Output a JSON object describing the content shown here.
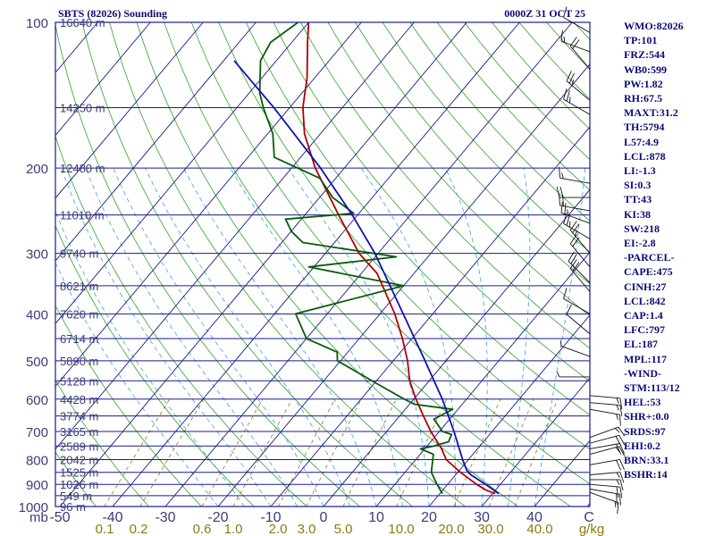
{
  "header": {
    "station": "SBTS (82026) Sounding",
    "time": "0000Z 31 OCT 25"
  },
  "stats": [
    "WMO:82026",
    "TP:101",
    "FRZ:544",
    "WB0:599",
    "PW:1.82",
    "RH:67.5",
    "MAXT:31.2",
    "TH:5794",
    "L57:4.9",
    "LCL:878",
    "LI:-1.3",
    "SI:0.3",
    "TT:43",
    "KI:38",
    "SW:218",
    "EI:-2.8",
    "-PARCEL-",
    "CAPE:475",
    "CINH:27",
    "LCL:842",
    "CAP:1.4",
    "LFC:797",
    "EL:187",
    "MPL:117",
    "-WIND-",
    "STM:113/12",
    "HEL:53",
    "SHR+:0.0",
    "SRDS:97",
    "EHI:0.2",
    "BRN:33.1",
    "BSHR:14"
  ],
  "colors": {
    "isobar": "#1a1a8c",
    "isotherm": "#1a1a8c",
    "dry_adiabat": "#2aa52a",
    "moist_adiabat": "#3aa0d8",
    "mixing_ratio": "#8a7a10",
    "temperature": "#b00000",
    "dewpoint": "#0a5a0a",
    "parcel": "#1010b0"
  },
  "chart_data": {
    "type": "line",
    "title": "SBTS (82026) Sounding",
    "subtitle": "0000Z 31 OCT 25",
    "xlabel": "",
    "ylabel": "mb",
    "x_unit": "C",
    "xlim": [
      -50,
      50
    ],
    "ylim": [
      1000,
      100
    ],
    "y_scale": "log",
    "x_ticks": [
      -50,
      -40,
      -30,
      -20,
      -10,
      0,
      10,
      20,
      30,
      40
    ],
    "x_tick_labels": [
      "-50",
      "-40",
      "-30",
      "-20",
      "-10",
      "0",
      "10",
      "20",
      "30",
      "40"
    ],
    "y_ticks": [
      1000,
      900,
      800,
      700,
      600,
      500,
      400,
      300,
      200,
      100
    ],
    "mixing_ratio_unit": "g/kg",
    "mixing_ratio_labels": [
      "0.1",
      "0.2",
      "0.6",
      "1.0",
      "2.0",
      "3.0",
      "5.0",
      "10.0",
      "20.0",
      "30.0",
      "40.0"
    ],
    "heights": [
      {
        "p": 100,
        "label": "16640 m"
      },
      {
        "p": 150,
        "label": "14250 m"
      },
      {
        "p": 200,
        "label": "12480 m"
      },
      {
        "p": 250,
        "label": "11010 m"
      },
      {
        "p": 300,
        "label": "9740 m"
      },
      {
        "p": 350,
        "label": "8621 m"
      },
      {
        "p": 400,
        "label": "7620 m"
      },
      {
        "p": 450,
        "label": "6714 m"
      },
      {
        "p": 500,
        "label": "5890 m"
      },
      {
        "p": 550,
        "label": "5128 m"
      },
      {
        "p": 600,
        "label": "4428 m"
      },
      {
        "p": 650,
        "label": "3774 m"
      },
      {
        "p": 700,
        "label": "3165 m"
      },
      {
        "p": 750,
        "label": "2589 m"
      },
      {
        "p": 800,
        "label": "2042 m"
      },
      {
        "p": 850,
        "label": "1525 m"
      },
      {
        "p": 900,
        "label": "1026 m"
      },
      {
        "p": 950,
        "label": "549 m"
      },
      {
        "p": 1000,
        "label": "96 m"
      }
    ],
    "series": [
      {
        "name": "",
        "role": "temperature",
        "points": [
          [
            941,
            30.5
          ],
          [
            925,
            28.2
          ],
          [
            900,
            25.5
          ],
          [
            850,
            20.5
          ],
          [
            800,
            15.8
          ],
          [
            760,
            13.2
          ],
          [
            700,
            8.4
          ],
          [
            650,
            4.5
          ],
          [
            600,
            0.4
          ],
          [
            550,
            -3.7
          ],
          [
            500,
            -7.3
          ],
          [
            450,
            -11.8
          ],
          [
            400,
            -17.2
          ],
          [
            350,
            -24.0
          ],
          [
            330,
            -27.0
          ],
          [
            300,
            -33.6
          ],
          [
            250,
            -43.6
          ],
          [
            200,
            -55.5
          ],
          [
            170,
            -63.0
          ],
          [
            150,
            -67.5
          ],
          [
            130,
            -71.5
          ],
          [
            110,
            -77.0
          ],
          [
            100,
            -80.0
          ]
        ]
      },
      {
        "name": "",
        "role": "dewpoint",
        "points": [
          [
            941,
            20.5
          ],
          [
            900,
            18.0
          ],
          [
            850,
            15.0
          ],
          [
            780,
            12.5
          ],
          [
            760,
            9.2
          ],
          [
            750,
            11.3
          ],
          [
            735,
            13.4
          ],
          [
            710,
            12.8
          ],
          [
            700,
            10.6
          ],
          [
            660,
            7.0
          ],
          [
            630,
            9.0
          ],
          [
            615,
            1.0
          ],
          [
            600,
            -1.8
          ],
          [
            560,
            -9.0
          ],
          [
            500,
            -20.6
          ],
          [
            480,
            -22.0
          ],
          [
            450,
            -30.0
          ],
          [
            400,
            -36.0
          ],
          [
            350,
            -20.0
          ],
          [
            320,
            -41.0
          ],
          [
            305,
            -26.0
          ],
          [
            285,
            -46.0
          ],
          [
            270,
            -50.0
          ],
          [
            255,
            -53.0
          ],
          [
            248,
            -41.0
          ],
          [
            230,
            -47.5
          ],
          [
            210,
            -53.0
          ],
          [
            190,
            -65.0
          ],
          [
            170,
            -69.0
          ],
          [
            150,
            -75.0
          ],
          [
            140,
            -78.0
          ],
          [
            120,
            -83.0
          ],
          [
            110,
            -84.0
          ],
          [
            100,
            -82.0
          ]
        ]
      },
      {
        "name": "",
        "role": "parcel",
        "points": [
          [
            941,
            31.2
          ],
          [
            900,
            27.2
          ],
          [
            860,
            22.9
          ],
          [
            842,
            21.4
          ],
          [
            800,
            18.9
          ],
          [
            700,
            12.8
          ],
          [
            600,
            5.4
          ],
          [
            500,
            -4.0
          ],
          [
            400,
            -15.6
          ],
          [
            300,
            -30.6
          ],
          [
            250,
            -41.0
          ],
          [
            200,
            -54.5
          ],
          [
            150,
            -73.0
          ],
          [
            120,
            -88.0
          ]
        ]
      }
    ],
    "winds": [
      {
        "p": 935,
        "dir": 110,
        "spd": 15
      },
      {
        "p": 920,
        "dir": 100,
        "spd": 20
      },
      {
        "p": 900,
        "dir": 95,
        "spd": 20
      },
      {
        "p": 880,
        "dir": 90,
        "spd": 15
      },
      {
        "p": 860,
        "dir": 85,
        "spd": 15
      },
      {
        "p": 820,
        "dir": 80,
        "spd": 20
      },
      {
        "p": 780,
        "dir": 75,
        "spd": 15
      },
      {
        "p": 760,
        "dir": 80,
        "spd": 20
      },
      {
        "p": 740,
        "dir": 75,
        "spd": 20
      },
      {
        "p": 720,
        "dir": 70,
        "spd": 15
      },
      {
        "p": 630,
        "dir": 100,
        "spd": 15
      },
      {
        "p": 610,
        "dir": 95,
        "spd": 15
      },
      {
        "p": 590,
        "dir": 95,
        "spd": 15
      },
      {
        "p": 540,
        "dir": 270,
        "spd": 5
      },
      {
        "p": 490,
        "dir": 290,
        "spd": 5
      },
      {
        "p": 440,
        "dir": 310,
        "spd": 10
      },
      {
        "p": 400,
        "dir": 300,
        "spd": 10
      },
      {
        "p": 360,
        "dir": 320,
        "spd": 20
      },
      {
        "p": 345,
        "dir": 315,
        "spd": 20
      },
      {
        "p": 320,
        "dir": 320,
        "spd": 20
      },
      {
        "p": 300,
        "dir": 320,
        "spd": 25
      },
      {
        "p": 280,
        "dir": 300,
        "spd": 25
      },
      {
        "p": 260,
        "dir": 290,
        "spd": 25
      },
      {
        "p": 245,
        "dir": 280,
        "spd": 20
      },
      {
        "p": 230,
        "dir": 270,
        "spd": 20
      },
      {
        "p": 215,
        "dir": 280,
        "spd": 15
      },
      {
        "p": 155,
        "dir": 300,
        "spd": 25
      },
      {
        "p": 145,
        "dir": 310,
        "spd": 25
      },
      {
        "p": 125,
        "dir": 320,
        "spd": 20
      },
      {
        "p": 115,
        "dir": 290,
        "spd": 15
      },
      {
        "p": 105,
        "dir": 300,
        "spd": 10
      }
    ]
  }
}
